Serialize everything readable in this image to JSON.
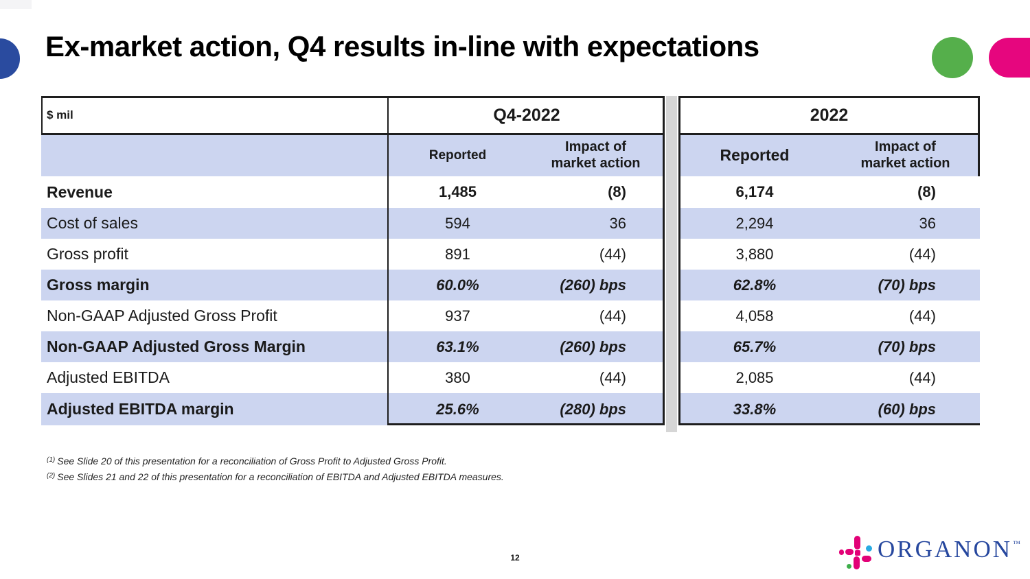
{
  "title": "Ex-market action, Q4 results in-line with expectations",
  "page_number": "12",
  "table": {
    "unit_label": "$ mil",
    "col_headers": {
      "reported": "Reported",
      "impact": "Impact of market action"
    },
    "groups": [
      {
        "id": "q4",
        "label": "Q4-2022"
      },
      {
        "id": "fy",
        "label": "2022"
      }
    ],
    "rows": [
      {
        "label": "Revenue",
        "label_bold": true,
        "value_style": "bold",
        "q4": [
          "1,485",
          "(8)"
        ],
        "fy": [
          "6,174",
          "(8)"
        ]
      },
      {
        "label": "Cost of sales",
        "label_bold": false,
        "value_style": "normal",
        "q4": [
          "594",
          "36"
        ],
        "fy": [
          "2,294",
          "36"
        ]
      },
      {
        "label": "Gross profit",
        "label_bold": false,
        "value_style": "normal",
        "q4": [
          "891",
          "(44)"
        ],
        "fy": [
          "3,880",
          "(44)"
        ]
      },
      {
        "label": "Gross margin",
        "label_bold": true,
        "value_style": "bold-italic",
        "q4": [
          "60.0%",
          "(260) bps"
        ],
        "fy": [
          "62.8%",
          "(70) bps"
        ]
      },
      {
        "label": "Non-GAAP Adjusted Gross Profit",
        "label_bold": false,
        "value_style": "normal",
        "q4": [
          "937",
          "(44)"
        ],
        "fy": [
          "4,058",
          "(44)"
        ]
      },
      {
        "label": "Non-GAAP Adjusted Gross Margin",
        "label_bold": true,
        "value_style": "bold-italic",
        "q4": [
          "63.1%",
          "(260) bps"
        ],
        "fy": [
          "65.7%",
          "(70) bps"
        ]
      },
      {
        "label": "Adjusted EBITDA",
        "label_bold": false,
        "value_style": "normal",
        "q4": [
          "380",
          "(44)"
        ],
        "fy": [
          "2,085",
          "(44)"
        ]
      },
      {
        "label": "Adjusted EBITDA margin",
        "label_bold": true,
        "value_style": "bold-italic",
        "q4": [
          "25.6%",
          "(280) bps"
        ],
        "fy": [
          "33.8%",
          "(60) bps"
        ]
      }
    ]
  },
  "footnotes": [
    {
      "marker": "(1)",
      "text": "See Slide 20 of this presentation for a reconciliation of Gross Profit to Adjusted Gross Profit."
    },
    {
      "marker": "(2)",
      "text": "See Slides 21 and 22 of this presentation for a reconciliation of EBITDA and Adjusted EBITDA measures."
    }
  ],
  "logo": {
    "wordmark": "ORGANON",
    "trademark": "™"
  },
  "colors": {
    "accent_blue": "#2A4B9F",
    "accent_green": "#55AF4B",
    "accent_pink": "#E6067E",
    "row_highlight": "#CCD5F0",
    "border": "#1E1E1E",
    "gray_strip": "#D6D6D6",
    "logo_magenta": "#E20177",
    "logo_cyan": "#29ABE2",
    "logo_green": "#3DAE4A",
    "logo_text_blue": "#26479E"
  }
}
